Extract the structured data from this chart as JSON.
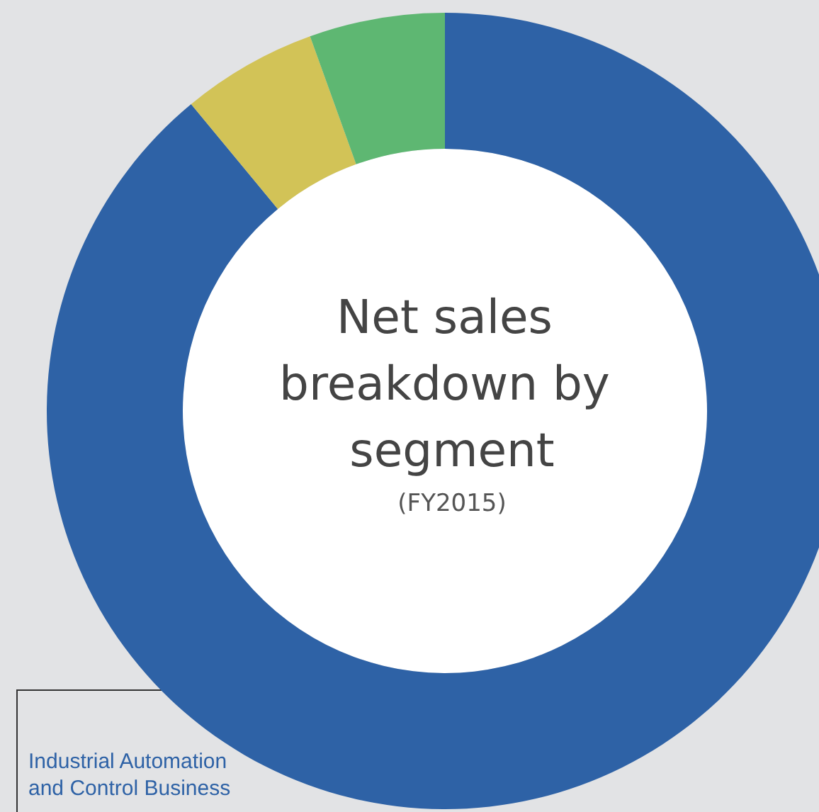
{
  "chart_data": {
    "type": "donut",
    "title": "Net sales breakdown by segment",
    "subtitle": "(FY2015)",
    "categories": [
      "Industrial Automation and Control Business",
      null,
      null
    ],
    "values": [
      89,
      5.5,
      5.5
    ],
    "colors": [
      "#2e62a6",
      "#d2c357",
      "#5eb772"
    ]
  }
}
